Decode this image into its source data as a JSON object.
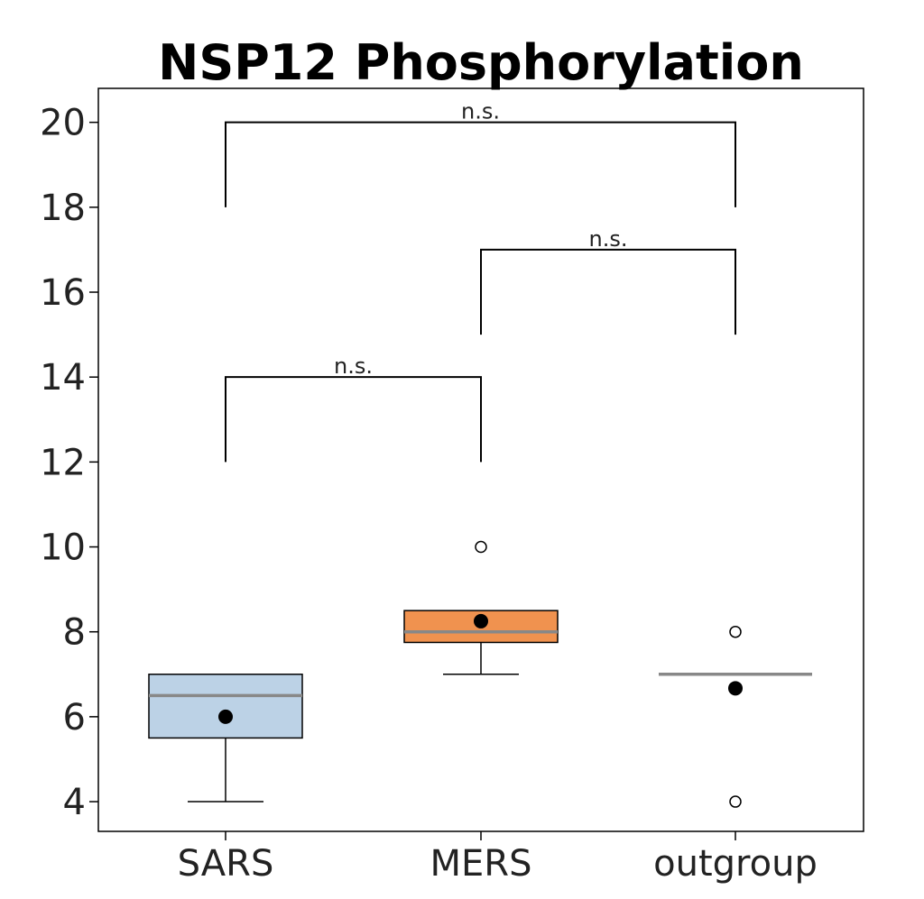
{
  "chart_data": {
    "type": "box",
    "title": "NSP12 Phosphorylation",
    "xlabel": "",
    "ylabel": "",
    "categories": [
      "SARS",
      "MERS",
      "outgroup"
    ],
    "ylim": [
      3.3,
      20.8
    ],
    "yticks": [
      4,
      6,
      8,
      10,
      12,
      14,
      16,
      18,
      20
    ],
    "grid": false,
    "boxes": [
      {
        "category": "SARS",
        "q1": 5.5,
        "median": 6.5,
        "q3": 7.0,
        "whisker_low": 4.0,
        "whisker_high": 7.0,
        "mean": 6.0,
        "outliers": [],
        "color": "#bcd2e6"
      },
      {
        "category": "MERS",
        "q1": 7.75,
        "median": 8.0,
        "q3": 8.5,
        "whisker_low": 7.0,
        "whisker_high": 8.5,
        "mean": 8.25,
        "outliers": [
          10.0
        ],
        "color": "#f0924f"
      },
      {
        "category": "outgroup",
        "q1": 7.0,
        "median": 7.0,
        "q3": 7.0,
        "whisker_low": 7.0,
        "whisker_high": 7.0,
        "mean": 6.67,
        "outliers": [
          8.0,
          4.0
        ],
        "color": "#ffffff"
      }
    ],
    "median_color": "#888888",
    "annotations": [
      {
        "from": "SARS",
        "to": "MERS",
        "y_low": 12,
        "y_top": 14,
        "label": "n.s."
      },
      {
        "from": "MERS",
        "to": "outgroup",
        "y_low": 15,
        "y_top": 17,
        "label": "n.s."
      },
      {
        "from": "SARS",
        "to": "outgroup",
        "y_low": 18,
        "y_top": 20,
        "label": "n.s."
      }
    ]
  }
}
